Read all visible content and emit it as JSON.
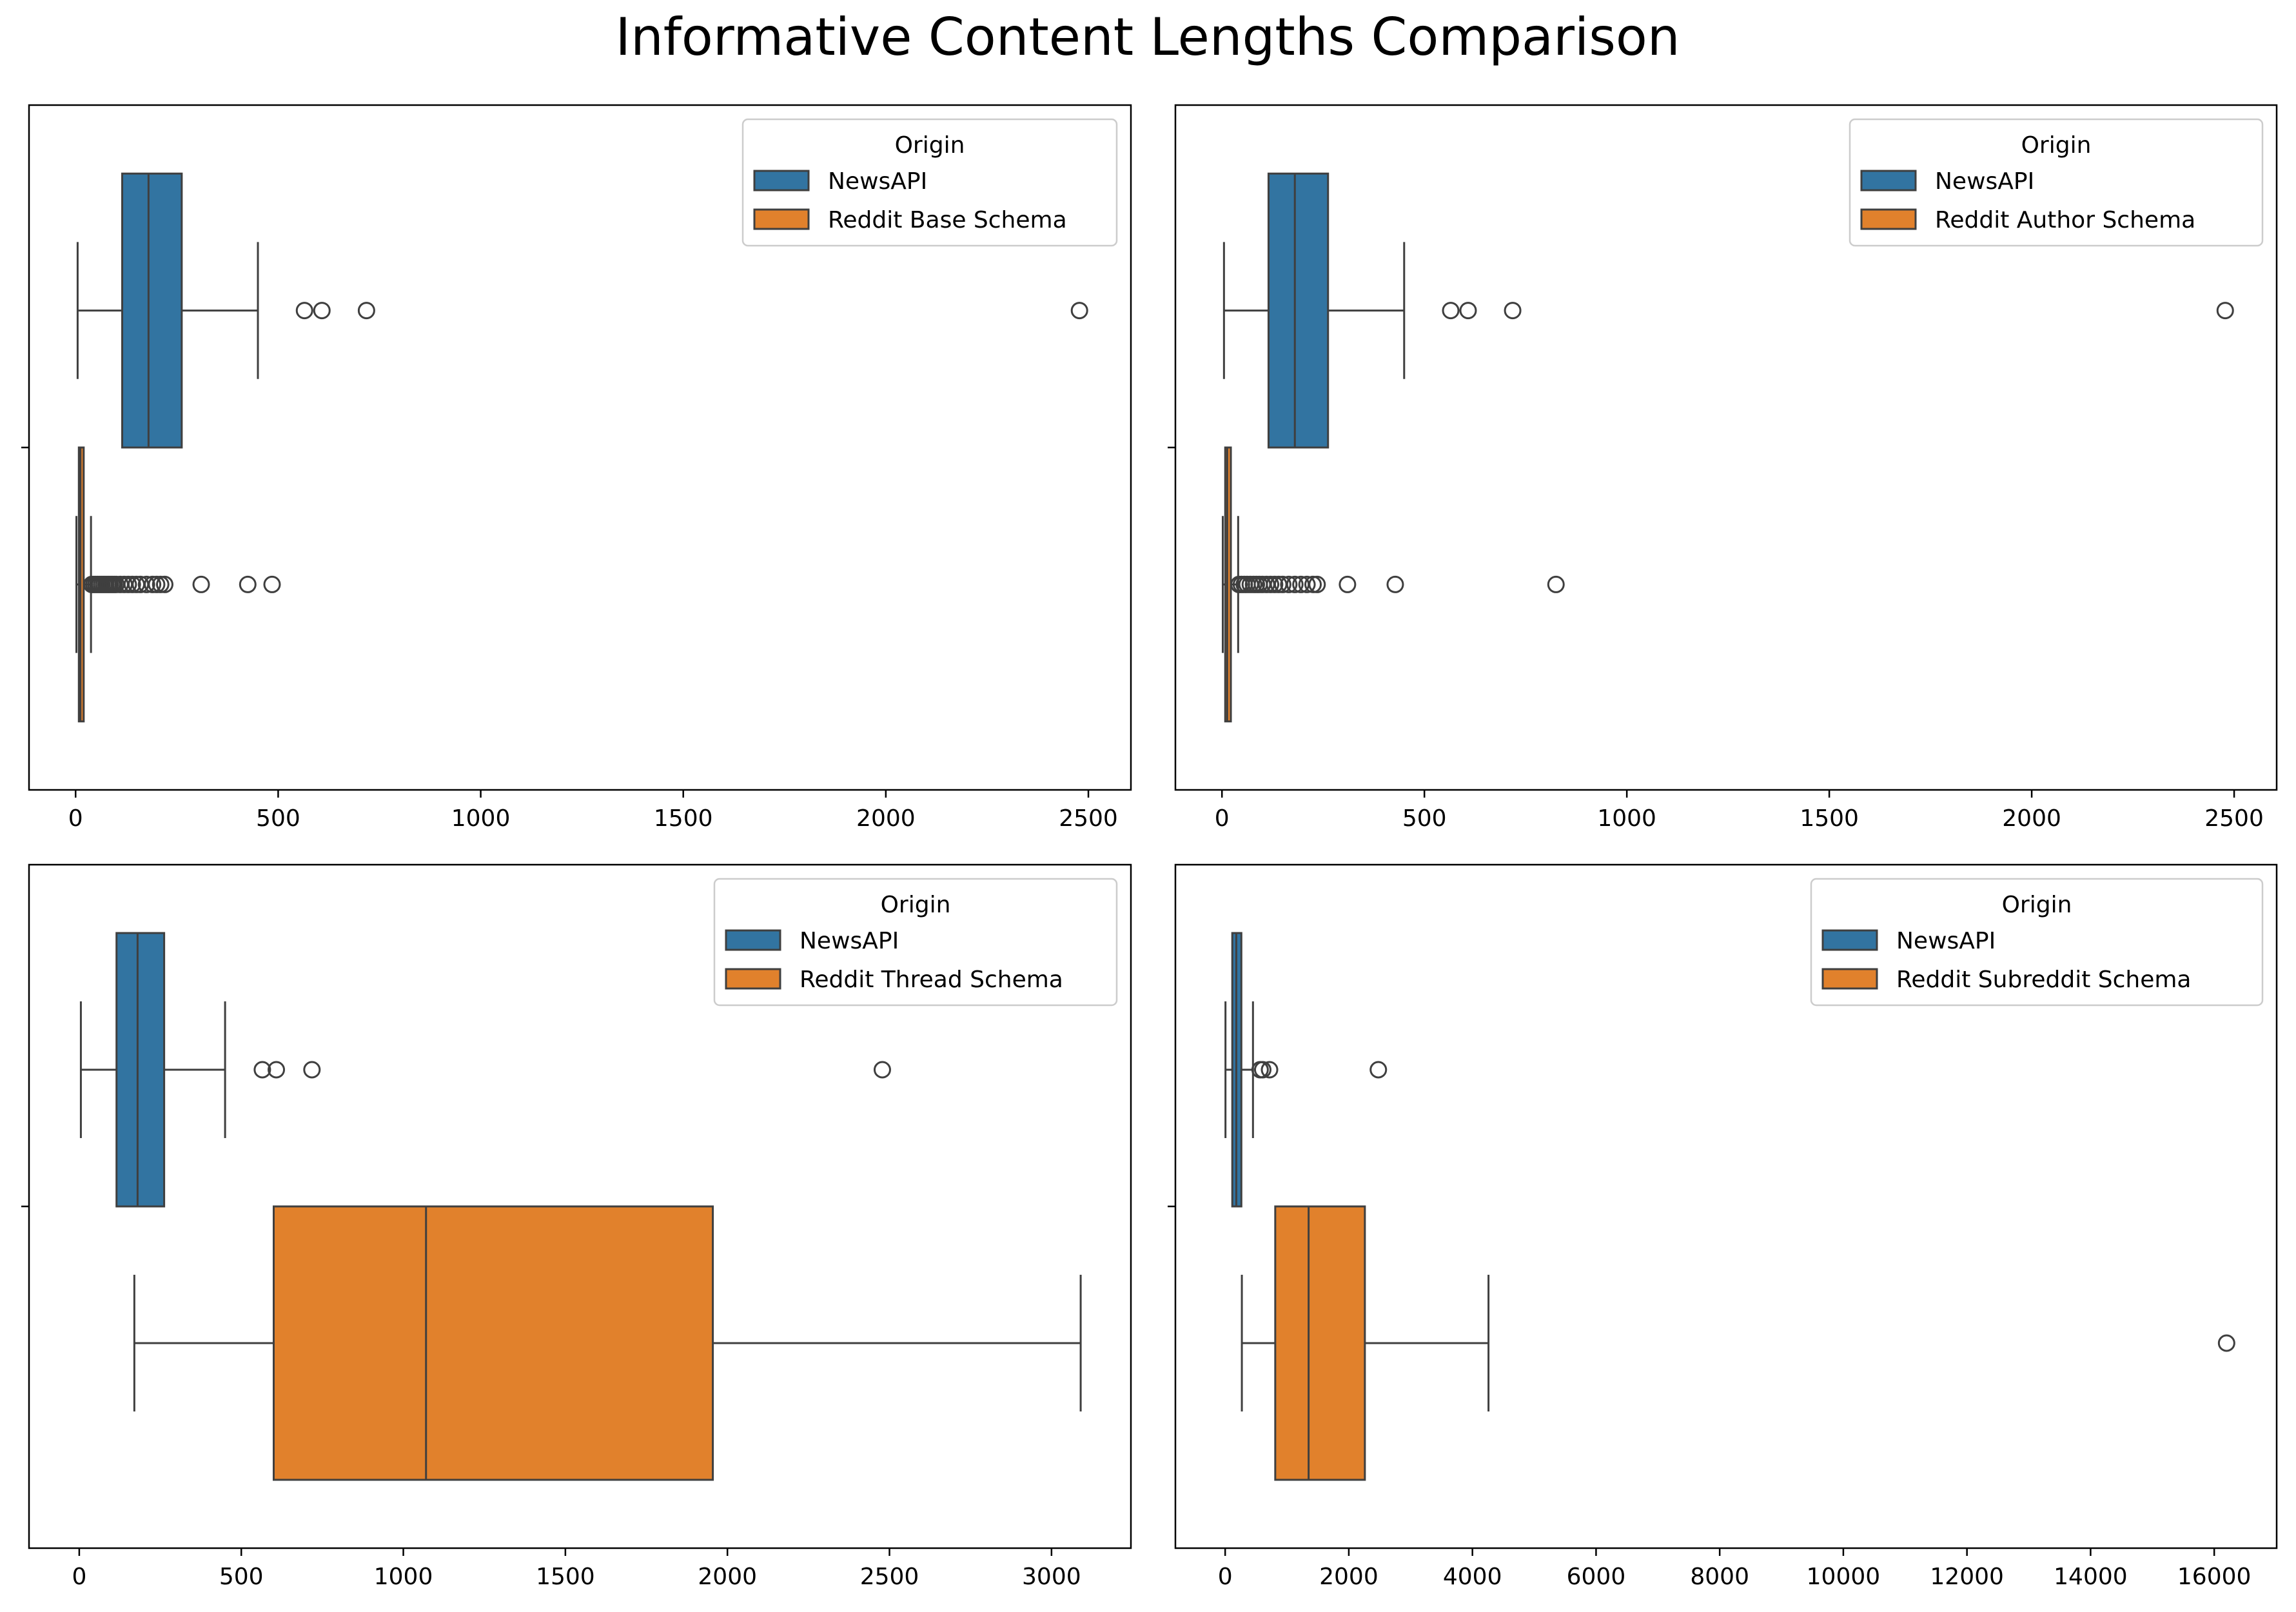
{
  "figure": {
    "title": "Informative Content Lengths Comparison"
  },
  "colors": {
    "newsapi": "#3274a1",
    "reddit": "#e1812c",
    "line": "#3f3f3f",
    "frame": "#000000"
  },
  "chart_data": [
    {
      "type": "boxplot",
      "orientation": "horizontal",
      "xlim": [
        -115,
        2605
      ],
      "xticks": [
        0,
        500,
        1000,
        1500,
        2000,
        2500
      ],
      "legend": {
        "title": "Origin",
        "location": "upper right",
        "entries": [
          "NewsAPI",
          "Reddit Base Schema"
        ]
      },
      "series": [
        {
          "name": "NewsAPI",
          "color_key": "newsapi",
          "min": 5,
          "q1": 115,
          "median": 180,
          "q3": 262,
          "max": 450,
          "outliers": [
            565,
            608,
            718,
            2478
          ]
        },
        {
          "name": "Reddit Base Schema",
          "color_key": "reddit",
          "min": 2,
          "q1": 8,
          "median": 12,
          "q3": 20,
          "max": 38,
          "outliers": [
            40,
            45,
            50,
            55,
            60,
            65,
            70,
            75,
            80,
            85,
            90,
            95,
            100,
            110,
            120,
            130,
            140,
            150,
            160,
            175,
            190,
            200,
            210,
            220,
            310,
            425,
            485
          ]
        }
      ]
    },
    {
      "type": "boxplot",
      "orientation": "horizontal",
      "xlim": [
        -115,
        2605
      ],
      "xticks": [
        0,
        500,
        1000,
        1500,
        2000,
        2500
      ],
      "legend": {
        "title": "Origin",
        "location": "upper right",
        "entries": [
          "NewsAPI",
          "Reddit Author Schema"
        ]
      },
      "series": [
        {
          "name": "NewsAPI",
          "color_key": "newsapi",
          "min": 5,
          "q1": 115,
          "median": 180,
          "q3": 262,
          "max": 450,
          "outliers": [
            565,
            608,
            718,
            2478
          ]
        },
        {
          "name": "Reddit Author Schema",
          "color_key": "reddit",
          "min": 2,
          "q1": 8,
          "median": 13,
          "q3": 22,
          "max": 40,
          "outliers": [
            42,
            48,
            55,
            62,
            70,
            78,
            85,
            92,
            100,
            110,
            120,
            130,
            140,
            150,
            165,
            180,
            195,
            210,
            225,
            235,
            310,
            428,
            825
          ]
        }
      ]
    },
    {
      "type": "boxplot",
      "orientation": "horizontal",
      "xlim": [
        -155,
        3245
      ],
      "xticks": [
        0,
        500,
        1000,
        1500,
        2000,
        2500,
        3000
      ],
      "legend": {
        "title": "Origin",
        "location": "upper right",
        "entries": [
          "NewsAPI",
          "Reddit Thread Schema"
        ]
      },
      "series": [
        {
          "name": "NewsAPI",
          "color_key": "newsapi",
          "min": 5,
          "q1": 115,
          "median": 180,
          "q3": 262,
          "max": 450,
          "outliers": [
            565,
            608,
            718,
            2478
          ]
        },
        {
          "name": "Reddit Thread Schema",
          "color_key": "reddit",
          "min": 170,
          "q1": 600,
          "median": 1070,
          "q3": 1955,
          "max": 3090,
          "outliers": []
        }
      ]
    },
    {
      "type": "boxplot",
      "orientation": "horizontal",
      "xlim": [
        -805,
        17010
      ],
      "xticks": [
        0,
        2000,
        4000,
        6000,
        8000,
        10000,
        12000,
        14000,
        16000
      ],
      "legend": {
        "title": "Origin",
        "location": "upper right",
        "entries": [
          "NewsAPI",
          "Reddit Subreddit Schema"
        ]
      },
      "series": [
        {
          "name": "NewsAPI",
          "color_key": "newsapi",
          "min": 5,
          "q1": 115,
          "median": 180,
          "q3": 262,
          "max": 450,
          "outliers": [
            565,
            608,
            718,
            2478
          ]
        },
        {
          "name": "Reddit Subreddit Schema",
          "color_key": "reddit",
          "min": 270,
          "q1": 810,
          "median": 1350,
          "q3": 2260,
          "max": 4260,
          "outliers": [
            16200
          ]
        }
      ]
    }
  ]
}
